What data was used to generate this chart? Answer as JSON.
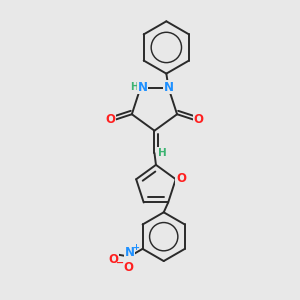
{
  "background_color": "#e8e8e8",
  "bond_color": "#2a2a2a",
  "N_color": "#1e90ff",
  "O_color": "#ff2020",
  "H_color": "#3cb371",
  "figsize": [
    3.0,
    3.0
  ],
  "dpi": 100,
  "xlim": [
    0,
    10
  ],
  "ylim": [
    0,
    10
  ]
}
